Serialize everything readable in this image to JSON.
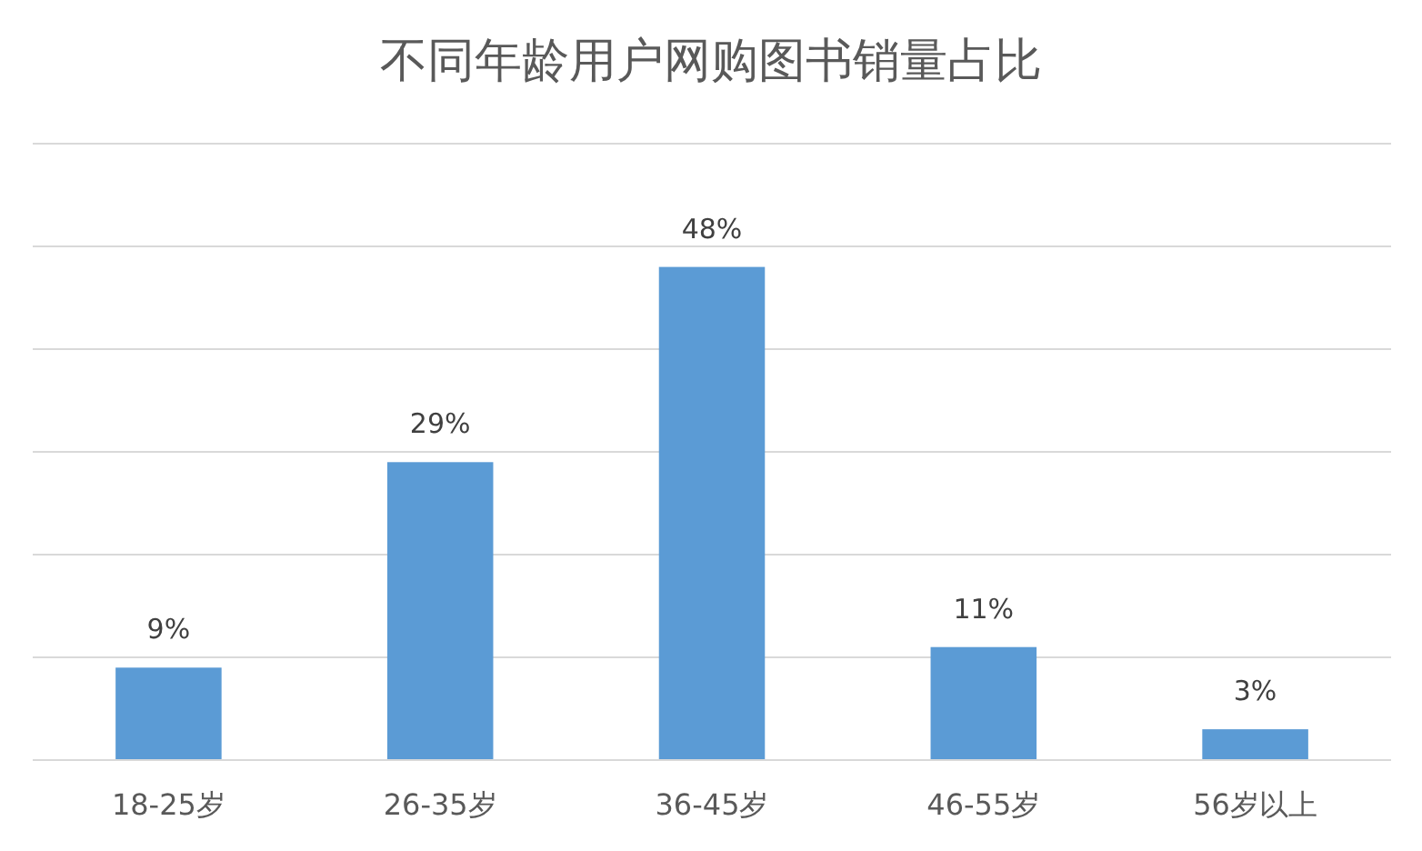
{
  "chart_data": {
    "type": "bar",
    "title": "不同年龄用户网购图书销量占比",
    "categories": [
      "18-25岁",
      "26-35岁",
      "36-45岁",
      "46-55岁",
      "56岁以上"
    ],
    "values": [
      9,
      29,
      48,
      11,
      3
    ],
    "value_labels": [
      "9%",
      "29%",
      "48%",
      "11%",
      "3%"
    ],
    "color": "#5b9bd5",
    "grid": "y",
    "tick_labels": "x"
  }
}
